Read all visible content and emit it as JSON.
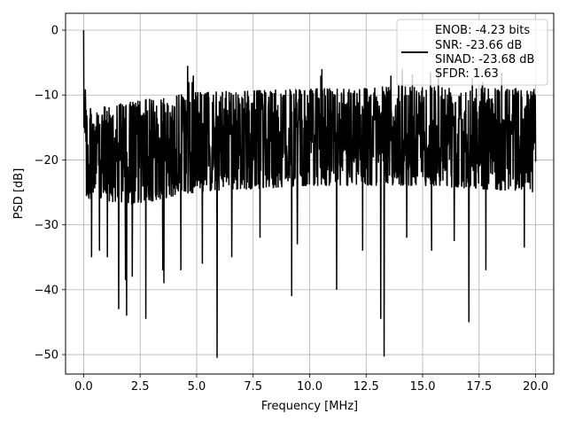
{
  "chart_data": {
    "type": "line",
    "title": "",
    "xlabel": "Frequency [MHz]",
    "ylabel": "PSD [dB]",
    "xlim": [
      -0.8,
      20.8
    ],
    "ylim": [
      -53,
      2.6
    ],
    "xticks": [
      0.0,
      2.5,
      5.0,
      7.5,
      10.0,
      12.5,
      15.0,
      17.5,
      20.0
    ],
    "xtick_labels": [
      "0.0",
      "2.5",
      "5.0",
      "7.5",
      "10.0",
      "12.5",
      "15.0",
      "17.5",
      "20.0"
    ],
    "yticks": [
      0,
      -10,
      -20,
      -30,
      -40,
      -50
    ],
    "ytick_labels": [
      "0",
      "−10",
      "−20",
      "−30",
      "−40",
      "−50"
    ],
    "grid": true,
    "legend_position": "top-right",
    "legend": {
      "lines": [
        "ENOB: -4.23 bits",
        "SNR: -23.66 dB",
        "SINAD: -23.68 dB",
        "SFDR: 1.63"
      ]
    },
    "series": [
      {
        "color": "#000000",
        "spikes_low": [
          {
            "x": 0.35,
            "y": -35
          },
          {
            "x": 0.7,
            "y": -34
          },
          {
            "x": 1.05,
            "y": -35
          },
          {
            "x": 1.55,
            "y": -43
          },
          {
            "x": 1.85,
            "y": -38.5
          },
          {
            "x": 1.9,
            "y": -44
          },
          {
            "x": 2.15,
            "y": -38
          },
          {
            "x": 2.75,
            "y": -44.5
          },
          {
            "x": 3.5,
            "y": -37
          },
          {
            "x": 3.55,
            "y": -39
          },
          {
            "x": 4.3,
            "y": -37
          },
          {
            "x": 4.85,
            "y": -35.5
          },
          {
            "x": 5.25,
            "y": -36
          },
          {
            "x": 5.9,
            "y": -50.5
          },
          {
            "x": 6.55,
            "y": -35
          },
          {
            "x": 7.8,
            "y": -32
          },
          {
            "x": 9.2,
            "y": -41
          },
          {
            "x": 9.45,
            "y": -33
          },
          {
            "x": 11.2,
            "y": -40
          },
          {
            "x": 12.35,
            "y": -34
          },
          {
            "x": 13.15,
            "y": -44.5
          },
          {
            "x": 13.3,
            "y": -50.3
          },
          {
            "x": 14.3,
            "y": -32
          },
          {
            "x": 15.4,
            "y": -34
          },
          {
            "x": 16.4,
            "y": -32.5
          },
          {
            "x": 17.05,
            "y": -45
          },
          {
            "x": 17.8,
            "y": -37
          },
          {
            "x": 19.5,
            "y": -33.5
          }
        ],
        "spikes_high": [
          {
            "x": 0.0,
            "y": 0.0
          },
          {
            "x": 4.6,
            "y": -5.5
          },
          {
            "x": 4.65,
            "y": -8
          },
          {
            "x": 4.8,
            "y": -8
          },
          {
            "x": 4.85,
            "y": -7
          },
          {
            "x": 10.5,
            "y": -7
          },
          {
            "x": 10.55,
            "y": -6
          },
          {
            "x": 13.6,
            "y": -7
          },
          {
            "x": 14.1,
            "y": -6
          },
          {
            "x": 14.55,
            "y": -6.8
          },
          {
            "x": 15.35,
            "y": -6.5
          },
          {
            "x": 15.7,
            "y": -6
          },
          {
            "x": 17.2,
            "y": -7.4
          },
          {
            "x": 17.65,
            "y": -8
          },
          {
            "x": 18.5,
            "y": -6.5
          },
          {
            "x": 19.95,
            "y": -9.8
          }
        ],
        "band_upper": [
          {
            "x": 0.5,
            "y": -12
          },
          {
            "x": 2.0,
            "y": -11
          },
          {
            "x": 5.0,
            "y": -9.5
          },
          {
            "x": 10.0,
            "y": -9
          },
          {
            "x": 15.0,
            "y": -8.5
          },
          {
            "x": 20.0,
            "y": -9
          }
        ],
        "band_lower": [
          {
            "x": 0.5,
            "y": -26
          },
          {
            "x": 2.0,
            "y": -27
          },
          {
            "x": 5.0,
            "y": -25
          },
          {
            "x": 10.0,
            "y": -24
          },
          {
            "x": 15.0,
            "y": -24
          },
          {
            "x": 20.0,
            "y": -25
          }
        ],
        "noise_floor_center": -17.5,
        "x_range": [
          0.0,
          20.0
        ],
        "num_points": 1600
      }
    ]
  }
}
